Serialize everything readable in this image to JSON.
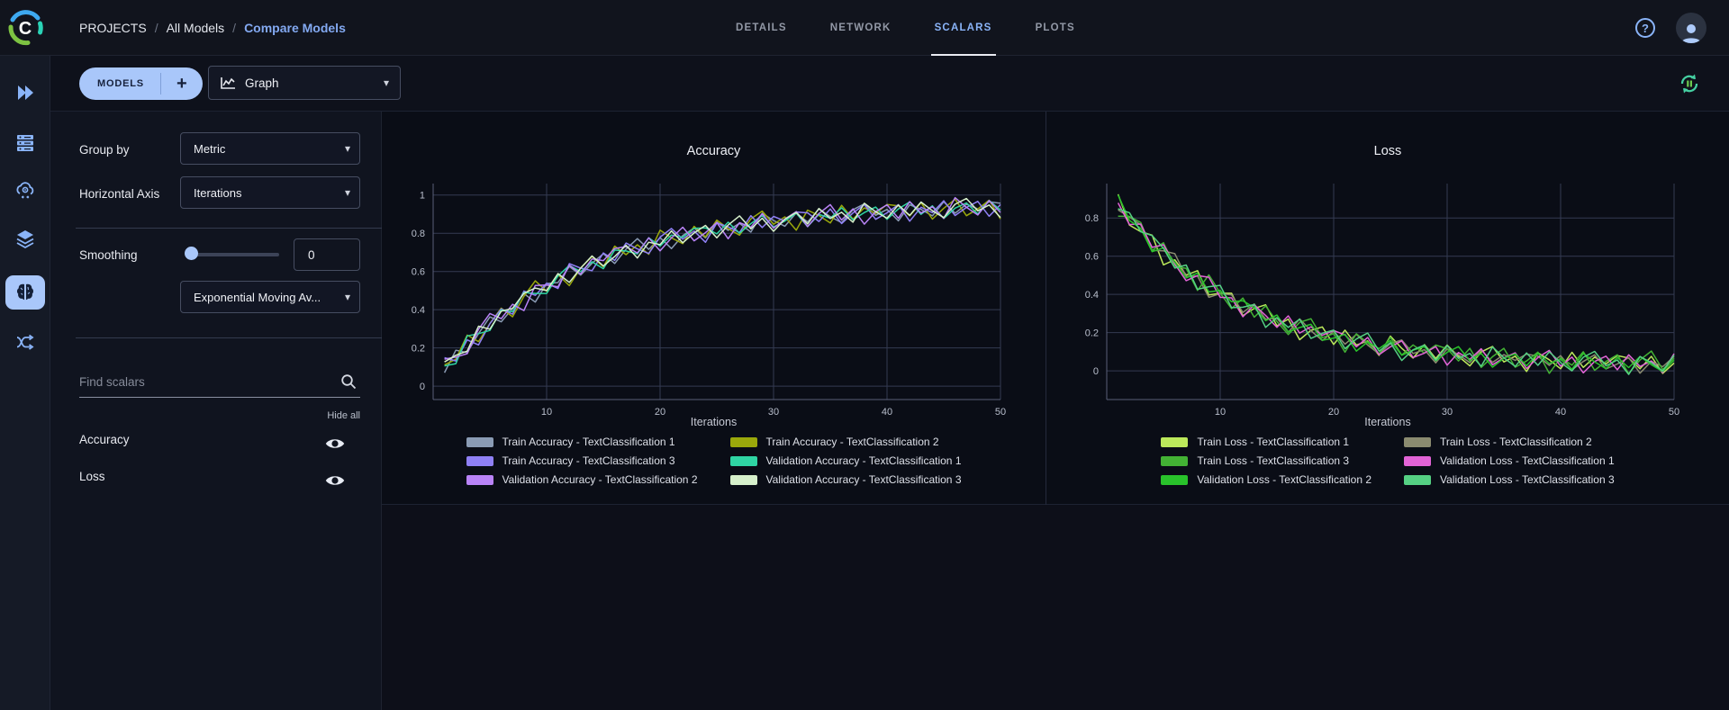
{
  "theme": {
    "accent": "#8ab4f8",
    "pill": "#a9c7fa",
    "background": "#0d0f19",
    "panel_bg": "#10141f",
    "chart_bg": "#0a0d16",
    "grid": "#343b52",
    "text": "#e8eaf0"
  },
  "header": {
    "logo_icon": "clearml-logo",
    "breadcrumb": {
      "separator": "/",
      "items": [
        "PROJECTS",
        "All Models",
        "Compare Models"
      ]
    },
    "tabs": [
      {
        "label": "DETAILS",
        "active": false
      },
      {
        "label": "NETWORK",
        "active": false
      },
      {
        "label": "SCALARS",
        "active": true
      },
      {
        "label": "PLOTS",
        "active": false
      }
    ],
    "help_icon": "help-icon",
    "avatar_icon": "user-avatar-icon"
  },
  "toolbar": {
    "models_label": "MODELS",
    "add_label": "+",
    "view_selector": {
      "value": "Graph",
      "icon": "graph-icon",
      "caret": "▾"
    },
    "refresh_icon": "auto-refresh-icon"
  },
  "sidebar": {
    "items": [
      {
        "name": "getting-started",
        "icon": "double-chevron-icon",
        "active": false
      },
      {
        "name": "workers",
        "icon": "server-icon",
        "active": false
      },
      {
        "name": "services",
        "icon": "cloud-gear-icon",
        "active": false
      },
      {
        "name": "datasets",
        "icon": "layers-icon",
        "active": false
      },
      {
        "name": "models",
        "icon": "brain-icon",
        "active": true
      },
      {
        "name": "pipelines",
        "icon": "pipeline-icon",
        "active": false
      }
    ]
  },
  "panel": {
    "group_by": {
      "label": "Group by",
      "value": "Metric",
      "caret": "▾"
    },
    "horizontal_axis": {
      "label": "Horizontal Axis",
      "value": "Iterations",
      "caret": "▾"
    },
    "smoothing": {
      "label": "Smoothing",
      "value": "0",
      "algorithm_value": "Exponential Moving Av...",
      "caret": "▾"
    },
    "search": {
      "placeholder": "Find scalars",
      "icon": "search-icon"
    },
    "hide_all_label": "Hide all",
    "metrics": [
      {
        "label": "Accuracy",
        "visible": true,
        "icon": "eye-icon"
      },
      {
        "label": "Loss",
        "visible": true,
        "icon": "eye-icon"
      }
    ]
  },
  "chart_data": [
    {
      "type": "line",
      "title": "Accuracy",
      "xlabel": "Iterations",
      "x_range": [
        1,
        50
      ],
      "x_ticks": [
        10,
        20,
        30,
        40,
        50
      ],
      "y_ticks": [
        0,
        0.2,
        0.4,
        0.6,
        0.8,
        1
      ],
      "ylim": [
        -0.07,
        1.06
      ],
      "grid": true,
      "legend_position": "bottom",
      "note": "series y[i] = base[i] + noise[(i+shift) mod 50] * amp, iterations 1-50",
      "base": [
        0.089,
        0.152,
        0.212,
        0.266,
        0.317,
        0.364,
        0.407,
        0.448,
        0.485,
        0.519,
        0.551,
        0.581,
        0.608,
        0.634,
        0.657,
        0.678,
        0.699,
        0.718,
        0.734,
        0.75,
        0.765,
        0.779,
        0.792,
        0.803,
        0.814,
        0.824,
        0.834,
        0.842,
        0.85,
        0.858,
        0.864,
        0.871,
        0.877,
        0.882,
        0.887,
        0.891,
        0.896,
        0.9,
        0.903,
        0.907,
        0.91,
        0.913,
        0.916,
        0.918,
        0.92,
        0.923,
        0.925,
        0.927,
        0.929,
        0.93
      ],
      "noise": [
        0.03,
        -0.02,
        0.04,
        -0.04,
        0.01,
        0.05,
        -0.03,
        0,
        0.04,
        -0.05,
        0.02,
        -0.01,
        0.05,
        -0.03,
        0.01,
        0.04,
        -0.04,
        0.02,
        0.06,
        -0.02,
        0.03,
        -0.05,
        0.01,
        0.04,
        -0.03,
        0.05,
        -0.01,
        0.02,
        -0.04,
        0.06,
        0.01,
        -0.03,
        0.04,
        -0.02,
        0.05,
        0,
        -0.04,
        0.03,
        0.06,
        -0.01,
        0.02,
        -0.05,
        0.04,
        0.01,
        -0.03,
        0.05,
        -0.02,
        0.03,
        0,
        0.04
      ],
      "series": [
        {
          "name": "Train Accuracy - TextClassification 1",
          "color": "#8a9bb4",
          "shift": 0,
          "amp": 0.9
        },
        {
          "name": "Train Accuracy - TextClassification 2",
          "color": "#9aa80b",
          "shift": 9,
          "amp": 1.1
        },
        {
          "name": "Train Accuracy - TextClassification 3",
          "color": "#8f80f5",
          "shift": 17,
          "amp": 1.0
        },
        {
          "name": "Validation Accuracy - TextClassification 1",
          "color": "#2fd5a4",
          "shift": 26,
          "amp": 0.85
        },
        {
          "name": "Validation Accuracy - TextClassification 2",
          "color": "#b983f7",
          "shift": 33,
          "amp": 1.05
        },
        {
          "name": "Validation Accuracy - TextClassification 3",
          "color": "#d6f0cb",
          "shift": 41,
          "amp": 0.95
        }
      ]
    },
    {
      "type": "line",
      "title": "Loss",
      "xlabel": "Iterations",
      "x_range": [
        1,
        50
      ],
      "x_ticks": [
        10,
        20,
        30,
        40,
        50
      ],
      "y_ticks": [
        0,
        0.2,
        0.4,
        0.6,
        0.8
      ],
      "ylim": [
        -0.15,
        0.98
      ],
      "grid": true,
      "legend_position": "bottom",
      "note": "series y[i] = base[i] + noise[(i+shift) mod 50] * amp, iterations 1-50",
      "base": [
        0.869,
        0.796,
        0.728,
        0.666,
        0.61,
        0.559,
        0.512,
        0.469,
        0.43,
        0.395,
        0.362,
        0.333,
        0.305,
        0.28,
        0.258,
        0.238,
        0.218,
        0.201,
        0.186,
        0.171,
        0.158,
        0.146,
        0.135,
        0.125,
        0.116,
        0.107,
        0.1,
        0.093,
        0.087,
        0.08,
        0.076,
        0.07,
        0.066,
        0.062,
        0.058,
        0.055,
        0.052,
        0.05,
        0.047,
        0.044,
        0.042,
        0.04,
        0.039,
        0.037,
        0.036,
        0.034,
        0.033,
        0.032,
        0.031,
        0.03
      ],
      "noise": [
        0.03,
        -0.02,
        0.04,
        -0.04,
        0.01,
        0.05,
        -0.03,
        0,
        0.04,
        -0.05,
        0.02,
        -0.01,
        0.05,
        -0.03,
        0.01,
        0.04,
        -0.04,
        0.02,
        0.06,
        -0.02,
        0.03,
        -0.05,
        0.01,
        0.04,
        -0.03,
        0.05,
        -0.01,
        0.02,
        -0.04,
        0.06,
        0.01,
        -0.03,
        0.04,
        -0.02,
        0.05,
        0,
        -0.04,
        0.03,
        0.06,
        -0.01,
        0.02,
        -0.05,
        0.04,
        0.01,
        -0.03,
        0.05,
        -0.02,
        0.03,
        0,
        0.04
      ],
      "series": [
        {
          "name": "Train Loss - TextClassification 1",
          "color": "#bce95b",
          "shift": 4,
          "amp": 1.1
        },
        {
          "name": "Train Loss - TextClassification 2",
          "color": "#8b8b70",
          "shift": 12,
          "amp": 0.9
        },
        {
          "name": "Train Loss - TextClassification 3",
          "color": "#43b234",
          "shift": 20,
          "amp": 1.2
        },
        {
          "name": "Validation Loss - TextClassification 1",
          "color": "#e263d6",
          "shift": 29,
          "amp": 1.0
        },
        {
          "name": "Validation Loss - TextClassification 2",
          "color": "#29c22b",
          "shift": 37,
          "amp": 0.85
        },
        {
          "name": "Validation Loss - TextClassification 3",
          "color": "#55d083",
          "shift": 45,
          "amp": 1.05
        }
      ]
    }
  ]
}
